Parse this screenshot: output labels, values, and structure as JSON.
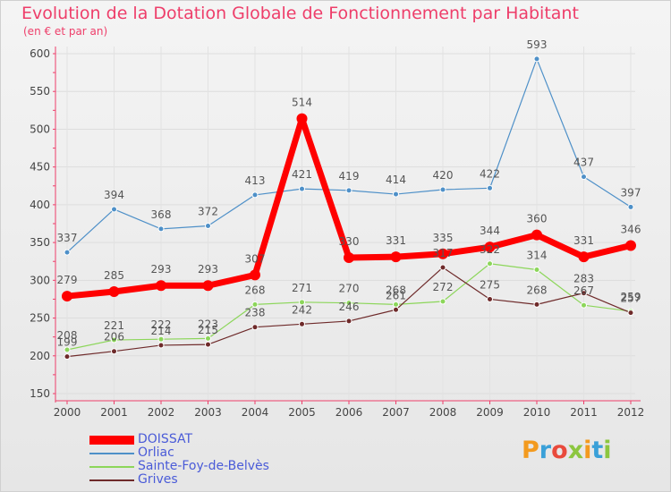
{
  "title": "Evolution de la Dotation Globale de Fonctionnement par Habitant",
  "subtitle": "(en € et par an)",
  "logo_text": "Proxiti",
  "chart_data": {
    "type": "line",
    "categories": [
      "2000",
      "2001",
      "2002",
      "2003",
      "2004",
      "2005",
      "2006",
      "2007",
      "2008",
      "2009",
      "2010",
      "2011",
      "2012"
    ],
    "ylim": [
      150,
      600
    ],
    "yticks": [
      150,
      200,
      250,
      300,
      350,
      400,
      450,
      500,
      550,
      600
    ],
    "xlabel": "",
    "ylabel": "",
    "legend_position": "bottom-left",
    "series": [
      {
        "name": "DOISSAT",
        "color": "#ff0000",
        "values": [
          279,
          285,
          293,
          293,
          307,
          514,
          330,
          331,
          335,
          344,
          360,
          331,
          346
        ]
      },
      {
        "name": "Orliac",
        "color": "#4e90c8",
        "values": [
          337,
          394,
          368,
          372,
          413,
          421,
          419,
          414,
          420,
          422,
          593,
          437,
          397
        ]
      },
      {
        "name": "Sainte-Foy-de-Belvès",
        "color": "#8cd65a",
        "values": [
          208,
          221,
          222,
          223,
          268,
          271,
          270,
          268,
          272,
          322,
          314,
          267,
          259
        ]
      },
      {
        "name": "Grives",
        "color": "#6e2a2a",
        "values": [
          199,
          206,
          214,
          215,
          238,
          242,
          246,
          261,
          317,
          275,
          268,
          283,
          257
        ]
      }
    ]
  }
}
